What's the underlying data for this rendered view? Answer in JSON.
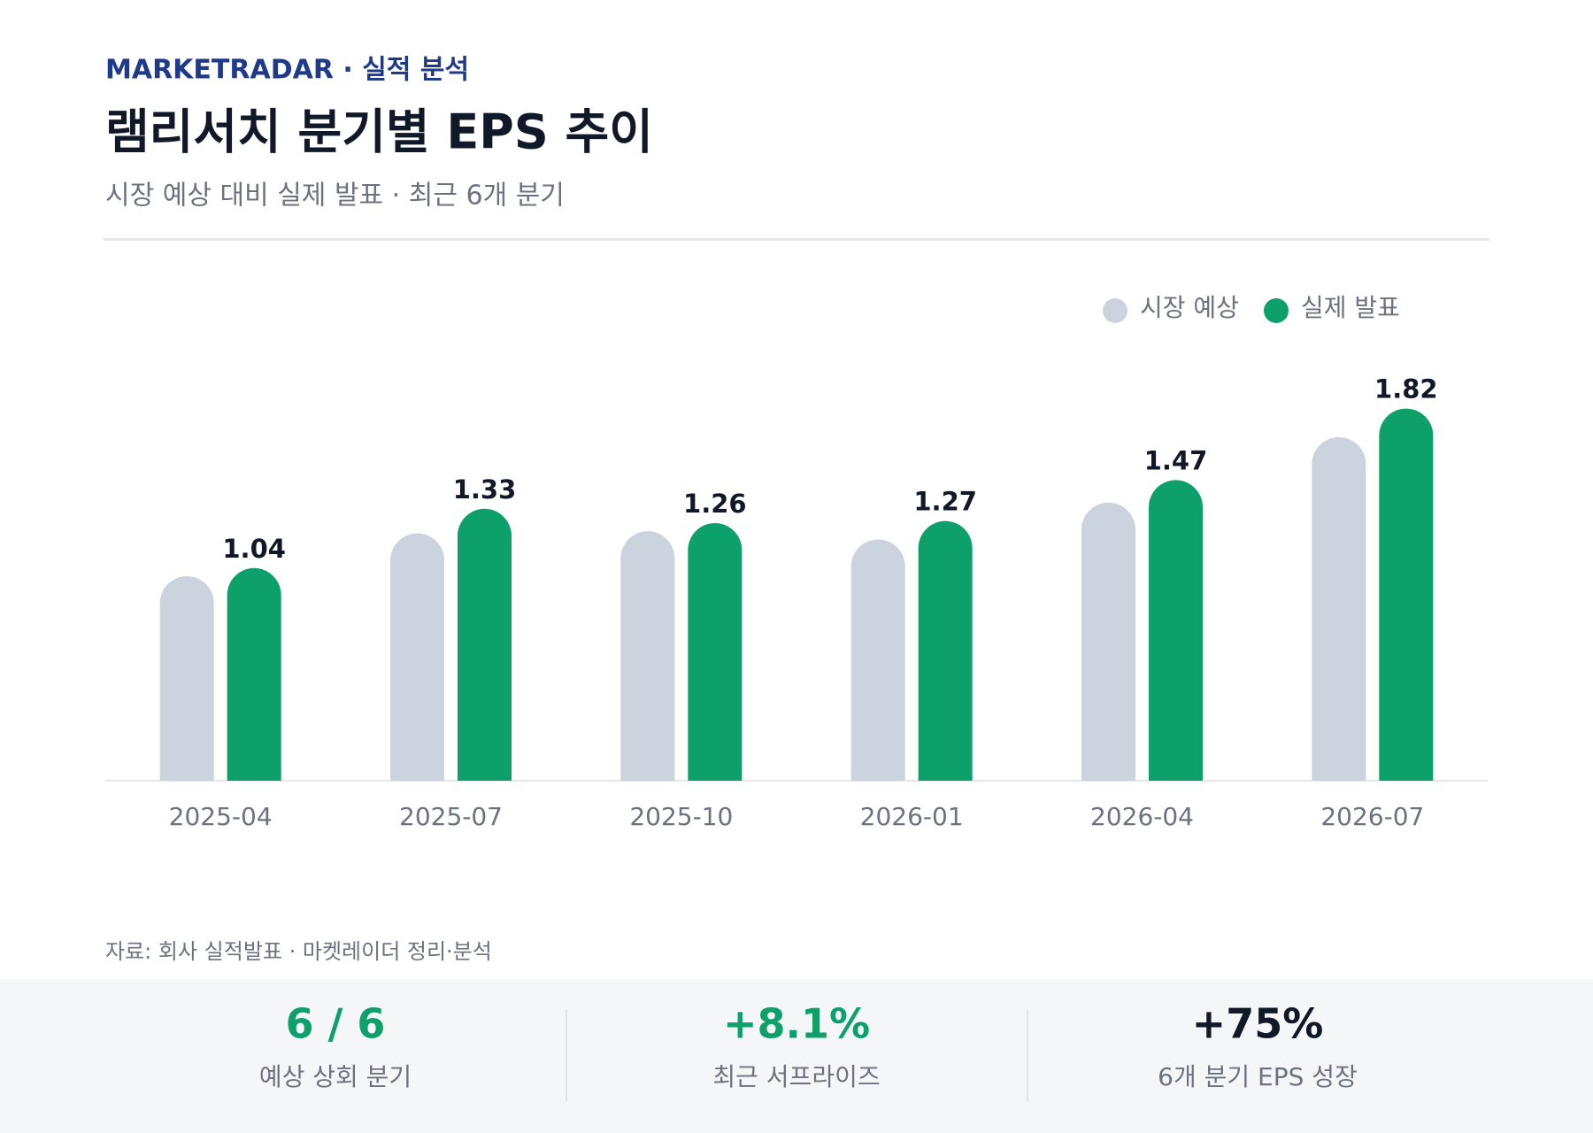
{
  "header": {
    "brand": "MARKETRADAR · 실적 분석",
    "title": "램리서치 분기별 EPS 추이",
    "subtitle": "시장 예상 대비 실제 발표 · 최근 6개 분기"
  },
  "chart_data": {
    "type": "bar",
    "categories": [
      "2025-04",
      "2025-07",
      "2025-10",
      "2026-01",
      "2026-04",
      "2026-07"
    ],
    "series": [
      {
        "name": "시장 예상",
        "color": "#cbd3df",
        "values": [
          1.0,
          1.21,
          1.22,
          1.18,
          1.36,
          1.68
        ]
      },
      {
        "name": "실제 발표",
        "color": "#0ea06b",
        "values": [
          1.04,
          1.33,
          1.26,
          1.27,
          1.47,
          1.82
        ],
        "value_labels": [
          "1.04",
          "1.33",
          "1.26",
          "1.27",
          "1.47",
          "1.82"
        ]
      }
    ],
    "ylim": [
      0,
      2
    ],
    "legend": "top-right"
  },
  "footer": {
    "source": "자료: 회사 실적발표 · 마켓레이더 정리·분석",
    "stats": [
      {
        "value": "6 / 6",
        "label": "예상 상회 분기"
      },
      {
        "value": "+8.1%",
        "label": "최근 서프라이즈"
      },
      {
        "value": "+75%",
        "label": "6개 분기 EPS 성장"
      }
    ]
  }
}
